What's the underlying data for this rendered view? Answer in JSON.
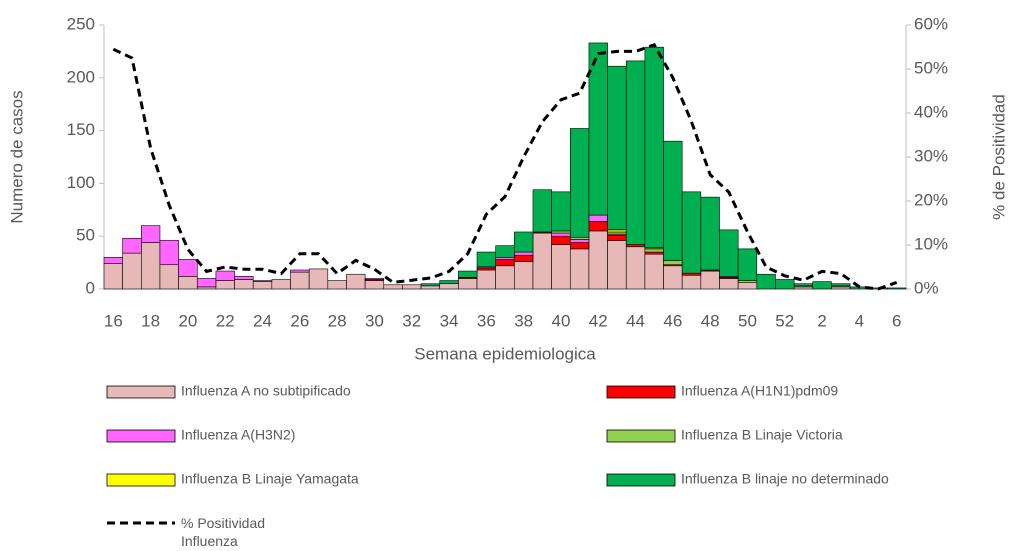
{
  "chart_data": {
    "type": "bar",
    "stacked": true,
    "x_label": "Semana epidemiologica",
    "y_label": "Numero de casos",
    "y2_label": "% de Positividad",
    "categories": [
      "16",
      null,
      "18",
      null,
      "20",
      null,
      "22",
      null,
      "24",
      null,
      "26",
      null,
      "28",
      null,
      "30",
      null,
      "32",
      null,
      "34",
      null,
      "36",
      null,
      "38",
      null,
      "40",
      null,
      "42",
      null,
      "44",
      null,
      "46",
      null,
      "48",
      null,
      "50",
      null,
      "52",
      null,
      "2",
      null,
      "4",
      null,
      "6"
    ],
    "ylim": [
      0,
      250
    ],
    "yticks": [
      0,
      50,
      100,
      150,
      200,
      250
    ],
    "y2lim": [
      0,
      60
    ],
    "y2ticks": [
      {
        "value": 0,
        "label": "0%"
      },
      {
        "value": 10,
        "label": "10%"
      },
      {
        "value": 20,
        "label": "20%"
      },
      {
        "value": 30,
        "label": "30%"
      },
      {
        "value": 40,
        "label": "40%"
      },
      {
        "value": 50,
        "label": "50%"
      },
      {
        "value": 60,
        "label": "60%"
      }
    ],
    "series": [
      {
        "name": "Influenza A no subtipificado",
        "color": "#e6b8b7",
        "values": [
          24,
          34,
          44,
          23,
          12,
          2,
          8,
          9,
          7,
          9,
          16,
          19,
          8,
          14,
          8,
          4,
          4,
          3,
          5,
          10,
          18,
          22,
          26,
          53,
          42,
          38,
          55,
          46,
          40,
          33,
          22,
          13,
          17,
          10,
          6,
          0,
          0,
          2,
          0,
          2,
          0,
          0,
          0
        ]
      },
      {
        "name": "Influenza A(H1N1)pdm09",
        "color": "#ff0000",
        "values": [
          0,
          0,
          0,
          0,
          0,
          0,
          0,
          0,
          0,
          0,
          0,
          0,
          0,
          0,
          1,
          0,
          0,
          0,
          0,
          1,
          2,
          6,
          6,
          1,
          8,
          6,
          9,
          5,
          2,
          2,
          1,
          2,
          1,
          1,
          0,
          0,
          0,
          0,
          0,
          0,
          0,
          0,
          0
        ]
      },
      {
        "name": "Influenza A(H3N2)",
        "color": "#ff66ff",
        "values": [
          6,
          14,
          16,
          23,
          16,
          8,
          9,
          3,
          1,
          0,
          2,
          0,
          0,
          0,
          1,
          0,
          0,
          0,
          0,
          0,
          1,
          2,
          3,
          0,
          3,
          3,
          6,
          1,
          0,
          0,
          0,
          0,
          0,
          1,
          0,
          0,
          0,
          0,
          0,
          0,
          0,
          0,
          0
        ]
      },
      {
        "name": "Influenza B Linaje Victoria",
        "color": "#92d050",
        "values": [
          0,
          0,
          0,
          0,
          0,
          0,
          0,
          0,
          0,
          0,
          0,
          0,
          0,
          0,
          0,
          0,
          0,
          0,
          0,
          0,
          0,
          0,
          0,
          0,
          2,
          2,
          0,
          2,
          0,
          3,
          4,
          0,
          0,
          0,
          2,
          0,
          0,
          1,
          0,
          1,
          0,
          0,
          0
        ]
      },
      {
        "name": "Influenza B Linaje Yamagata",
        "color": "#ffff00",
        "values": [
          0,
          0,
          0,
          0,
          0,
          0,
          0,
          0,
          0,
          0,
          0,
          0,
          0,
          0,
          0,
          0,
          0,
          0,
          0,
          0,
          0,
          0,
          0,
          0,
          0,
          0,
          0,
          2,
          0,
          1,
          0,
          0,
          0,
          0,
          0,
          0,
          0,
          0,
          0,
          0,
          0,
          0,
          0
        ]
      },
      {
        "name": "Influenza B linaje no determinado",
        "color": "#00b050",
        "values": [
          0,
          0,
          0,
          0,
          0,
          0,
          0,
          0,
          0,
          0,
          0,
          0,
          0,
          0,
          0,
          0,
          0,
          2,
          3,
          6,
          14,
          11,
          19,
          40,
          37,
          103,
          163,
          155,
          174,
          190,
          113,
          77,
          69,
          44,
          30,
          14,
          9,
          2,
          7,
          2,
          2,
          1,
          1
        ]
      },
      {
        "name": "% Positividad Influenza",
        "type": "line",
        "axis": "y2",
        "color": "#000000",
        "values": [
          54.5,
          52.5,
          32,
          19,
          9,
          4,
          5,
          4.5,
          4.5,
          3.5,
          8,
          8,
          3.5,
          6.5,
          4.5,
          1.5,
          2,
          2.5,
          4,
          8,
          17,
          21,
          30,
          38,
          43,
          44.5,
          53.5,
          54,
          54,
          55.5,
          48,
          38,
          26,
          22,
          13,
          5,
          3,
          2,
          4,
          3.5,
          0.5,
          0,
          1.5
        ]
      }
    ]
  }
}
